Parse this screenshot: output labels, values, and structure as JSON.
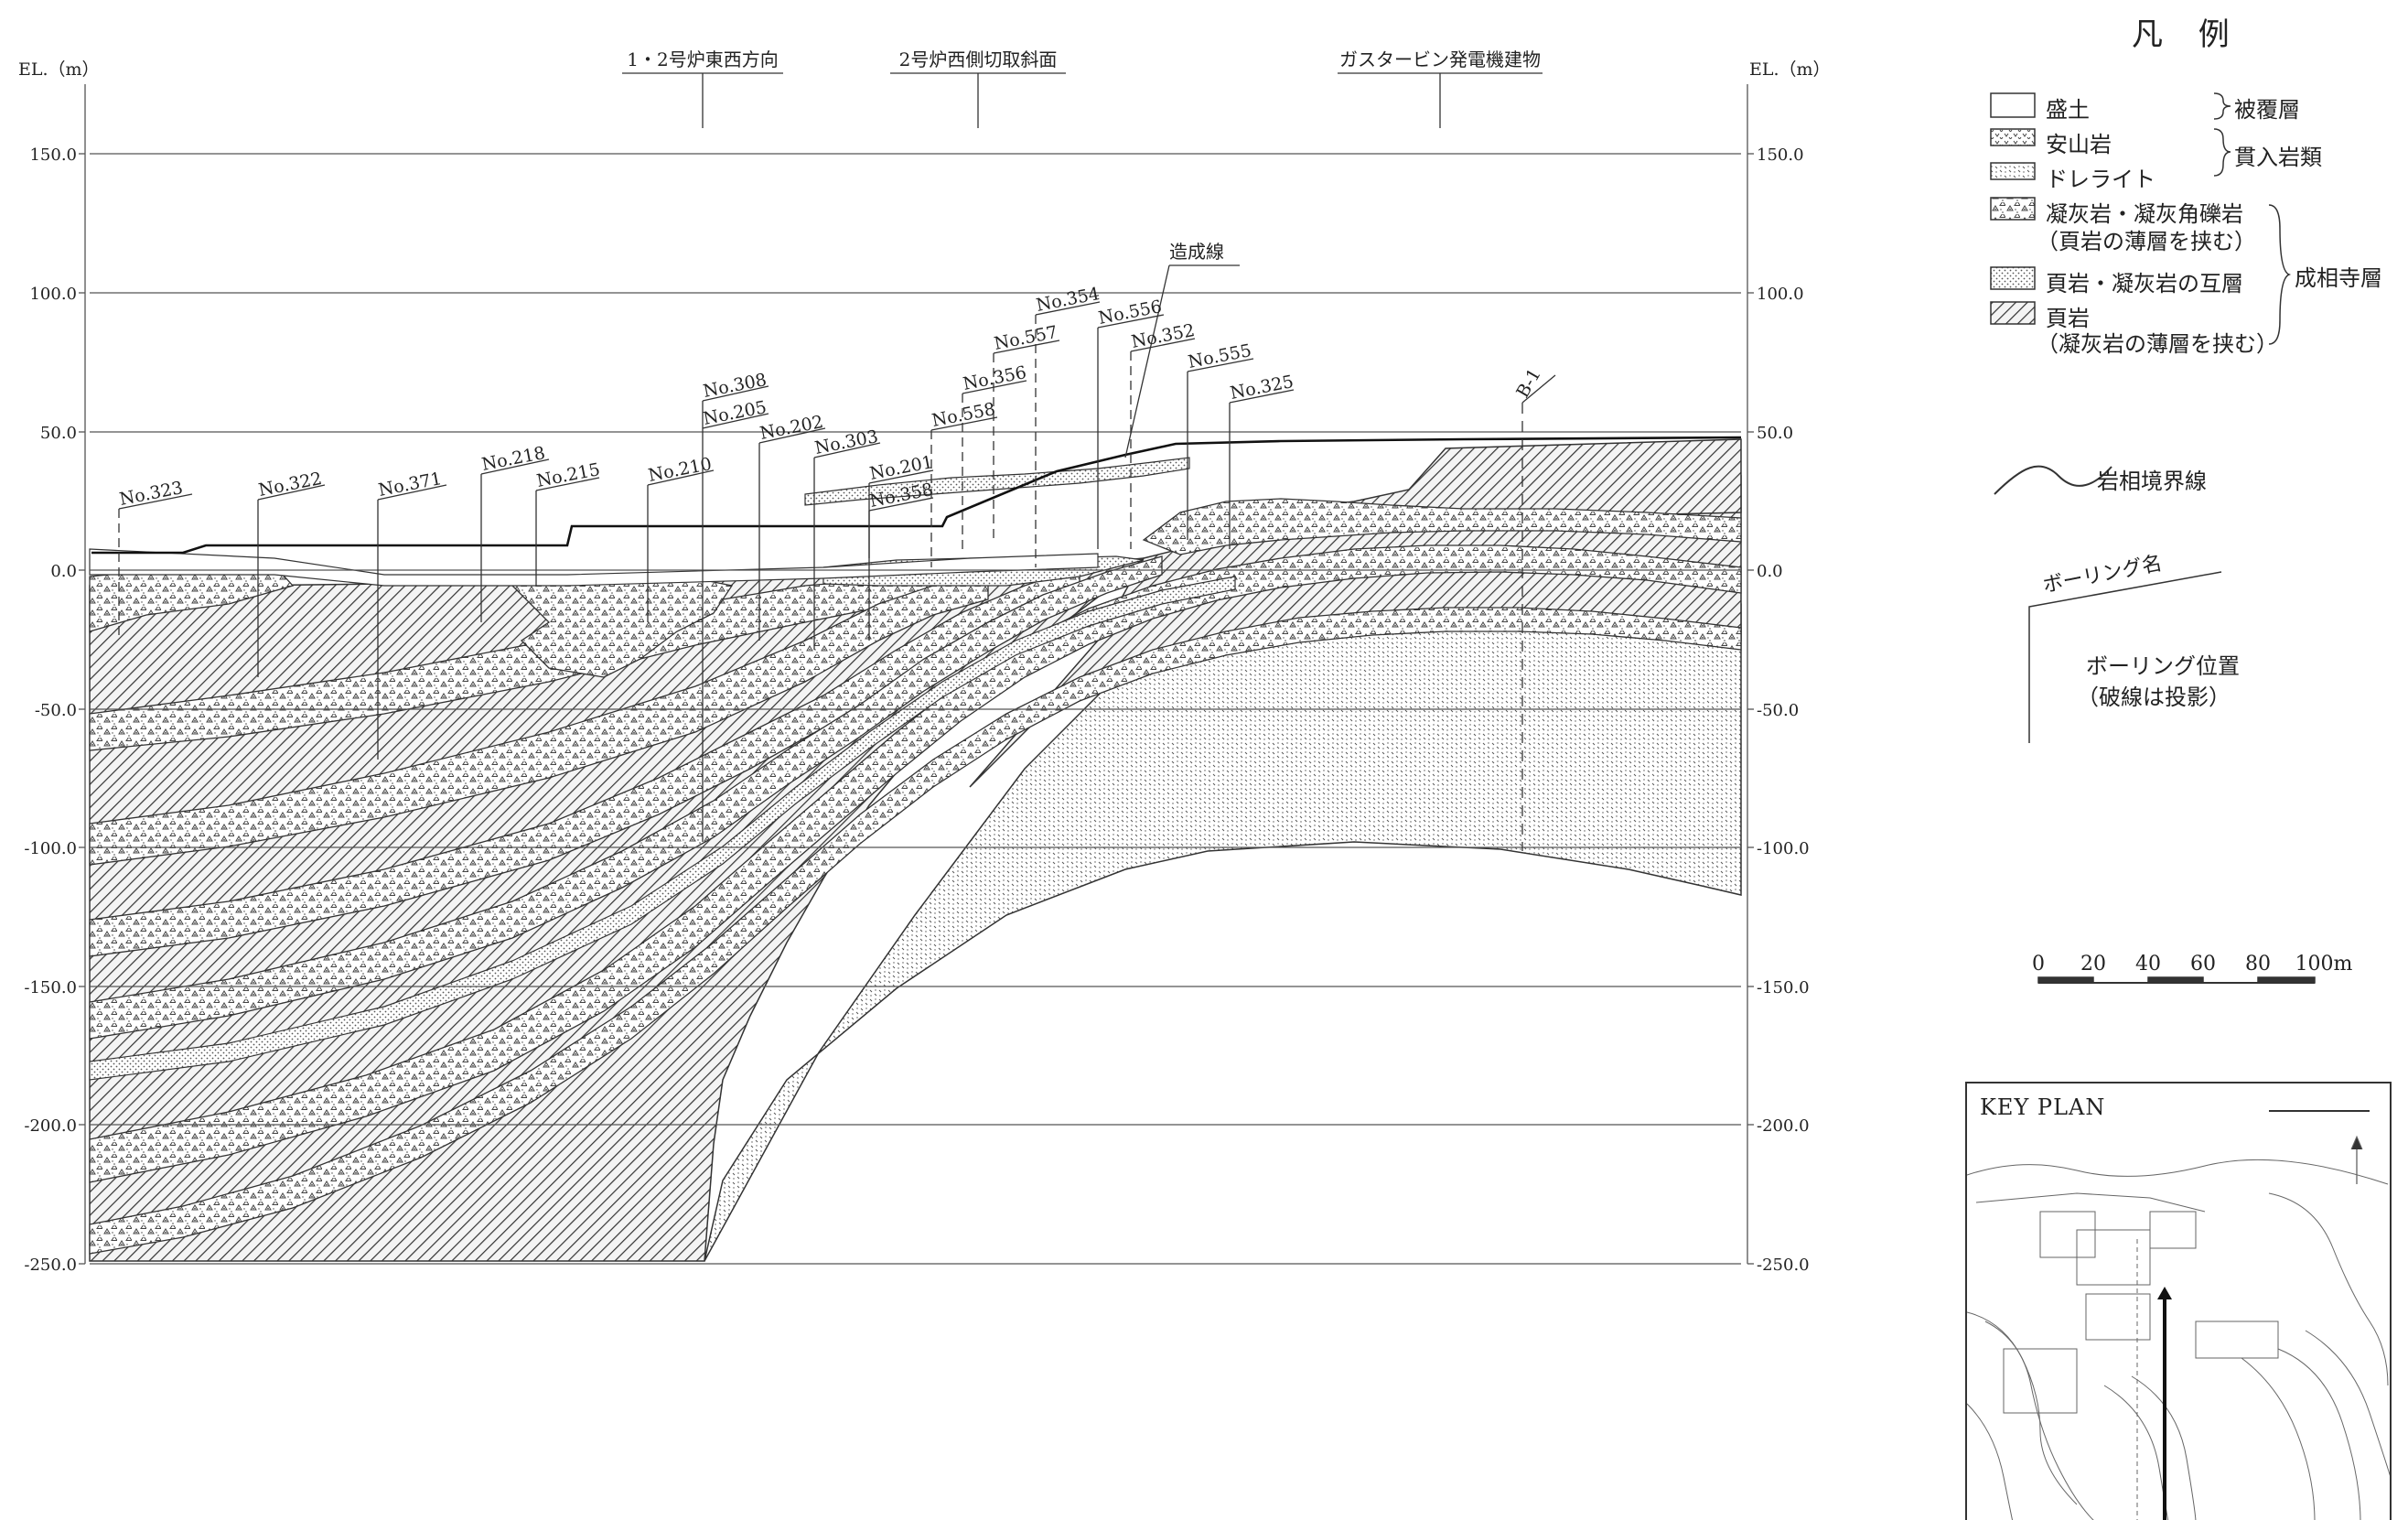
{
  "section": {
    "axis_label_left": "EL.（m）",
    "axis_label_right": "EL.（m）",
    "y_ticks_left": [
      "150.0",
      "100.0",
      "50.0",
      "0.0",
      "-50.0",
      "-100.0",
      "-150.0",
      "-200.0",
      "-250.0"
    ],
    "y_ticks_right": [
      "150.0",
      "100.0",
      "50.0",
      "0.0",
      "-50.0",
      "-100.0",
      "-150.0",
      "-200.0",
      "-250.0"
    ],
    "top_labels": [
      "1・2号炉東西方向",
      "2号炉西側切取斜面",
      "ガスタービン発電機建物"
    ],
    "construction_line_label": "造成線",
    "boreholes": [
      "No.323",
      "No.322",
      "No.371",
      "No.218",
      "No.215",
      "No.210",
      "No.308",
      "No.205",
      "No.202",
      "No.303",
      "No.201",
      "No.358",
      "No.558",
      "No.356",
      "No.557",
      "No.354",
      "No.556",
      "No.352",
      "No.555",
      "No.325",
      "B-1"
    ]
  },
  "legend": {
    "title": "凡 例",
    "fill": "盛土",
    "andesite": "安山岩",
    "dolerite": "ドレライト",
    "tuff_line1": "凝灰岩・凝灰角礫岩",
    "tuff_line2": "（頁岩の薄層を挟む）",
    "alternation": "頁岩・凝灰岩の互層",
    "shale_line1": "頁岩",
    "shale_line2": "（凝灰岩の薄層を挟む）",
    "group_cover": "被覆層",
    "group_intrusive": "貫入岩類",
    "group_formation": "成相寺層",
    "boundary_label": "岩相境界線",
    "boring_name": "ボーリング名",
    "boring_pos_line1": "ボーリング位置",
    "boring_pos_line2": "（破線は投影）"
  },
  "scale": {
    "ticks": [
      "0",
      "20",
      "40",
      "60",
      "80",
      "100m"
    ]
  },
  "keyplan": {
    "title": "KEY PLAN"
  }
}
